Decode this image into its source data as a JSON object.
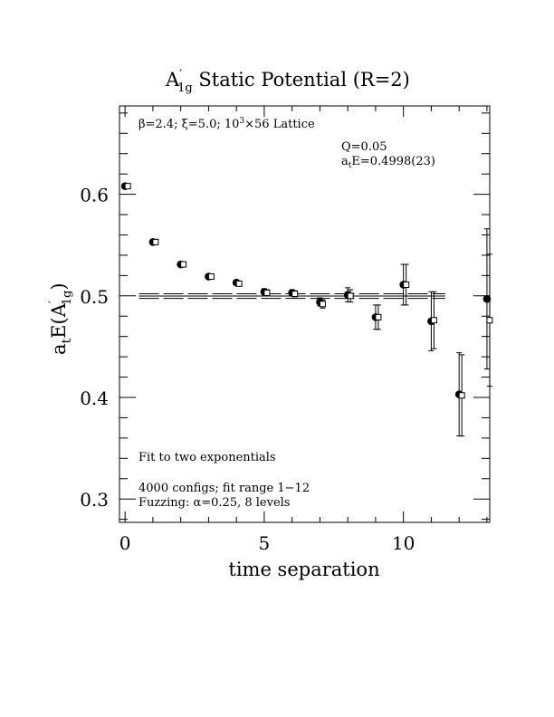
{
  "chart_data": {
    "type": "scatter",
    "title_main": "A",
    "title_sup": "′",
    "title_sub": "1g",
    "title_rest": " Static Potential (R=2)",
    "xlabel": "time separation",
    "ylabel_main": "a",
    "ylabel_t": "t",
    "ylabel_mid": "E(A",
    "ylabel_sup": "′",
    "ylabel_sub": "1g",
    "ylabel_end": ")",
    "xlim": [
      -0.2,
      13.1
    ],
    "ylim": [
      0.277,
      0.687
    ],
    "x_ticks": [
      0,
      5,
      10
    ],
    "y_ticks": [
      0.3,
      0.4,
      0.5,
      0.6
    ],
    "x_tick_labels": [
      "0",
      "5",
      "10"
    ],
    "y_tick_labels": [
      "0.3",
      "0.4",
      "0.5",
      "0.6"
    ],
    "annotations": {
      "lattice_beta": "β",
      "lattice_rest1": "=2.4; ",
      "lattice_xi": "ξ",
      "lattice_rest2": "=5.0; 10",
      "lattice_sup": "3",
      "lattice_rest3": "×56 Lattice",
      "q_value": "Q=0.05",
      "fit_a": "a",
      "fit_t": "t",
      "fit_rest": "E=0.4998(23)",
      "fit_type": "Fit to two exponentials",
      "configs": "4000 configs; fit range 1−12",
      "fuzz_a": "Fuzzing: ",
      "fuzz_alpha": "α",
      "fuzz_b": "=0.25, 8 levels"
    },
    "fit": {
      "value": 0.4998,
      "error": 0.0023,
      "x_start": 0.5,
      "x_end": 11.5
    },
    "series": [
      {
        "marker": "filled-circle",
        "points": [
          {
            "x": 0,
            "y": 0.608,
            "err": 0.001
          },
          {
            "x": 1,
            "y": 0.553,
            "err": 0.001
          },
          {
            "x": 2,
            "y": 0.531,
            "err": 0.002
          },
          {
            "x": 3,
            "y": 0.519,
            "err": 0.002
          },
          {
            "x": 4,
            "y": 0.513,
            "err": 0.002
          },
          {
            "x": 5,
            "y": 0.504,
            "err": 0.003
          },
          {
            "x": 6,
            "y": 0.503,
            "err": 0.003
          },
          {
            "x": 7,
            "y": 0.494,
            "err": 0.004
          },
          {
            "x": 8,
            "y": 0.501,
            "err": 0.007
          },
          {
            "x": 9,
            "y": 0.479,
            "err": 0.012
          },
          {
            "x": 10,
            "y": 0.511,
            "err": 0.02
          },
          {
            "x": 11,
            "y": 0.475,
            "err": 0.029
          },
          {
            "x": 12,
            "y": 0.403,
            "err": 0.041
          },
          {
            "x": 13,
            "y": 0.497,
            "err": 0.069
          }
        ]
      },
      {
        "marker": "open-square",
        "points": [
          {
            "x": 0,
            "y": 0.608,
            "err": 0.001
          },
          {
            "x": 1,
            "y": 0.553,
            "err": 0.001
          },
          {
            "x": 2,
            "y": 0.531,
            "err": 0.002
          },
          {
            "x": 3,
            "y": 0.519,
            "err": 0.002
          },
          {
            "x": 4,
            "y": 0.512,
            "err": 0.002
          },
          {
            "x": 5,
            "y": 0.503,
            "err": 0.003
          },
          {
            "x": 6,
            "y": 0.502,
            "err": 0.003
          },
          {
            "x": 7,
            "y": 0.492,
            "err": 0.004
          },
          {
            "x": 8,
            "y": 0.5,
            "err": 0.006
          },
          {
            "x": 9,
            "y": 0.479,
            "err": 0.012
          },
          {
            "x": 10,
            "y": 0.511,
            "err": 0.02
          },
          {
            "x": 11,
            "y": 0.476,
            "err": 0.028
          },
          {
            "x": 12,
            "y": 0.402,
            "err": 0.04
          },
          {
            "x": 13,
            "y": 0.476,
            "err": 0.065
          }
        ]
      }
    ]
  }
}
